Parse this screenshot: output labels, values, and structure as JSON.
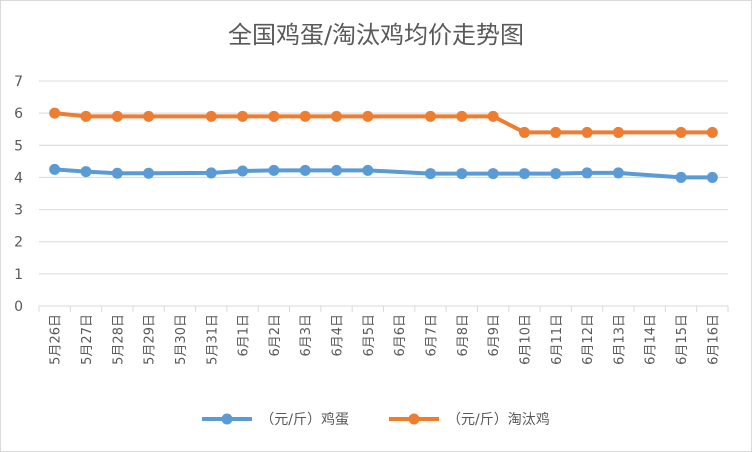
{
  "chart_data": {
    "type": "line",
    "title": "全国鸡蛋/淘汰鸡均价走势图",
    "categories": [
      "5月26日",
      "5月27日",
      "5月28日",
      "5月29日",
      "5月30日",
      "5月31日",
      "6月1日",
      "6月2日",
      "6月3日",
      "6月4日",
      "6月5日",
      "6月6日",
      "6月7日",
      "6月8日",
      "6月9日",
      "6月10日",
      "6月11日",
      "6月12日",
      "6月13日",
      "6月14日",
      "6月15日",
      "6月16日"
    ],
    "series": [
      {
        "name": "（元/斤）鸡蛋",
        "color": "#5b9bd5",
        "values": [
          4.25,
          4.18,
          4.13,
          4.13,
          null,
          4.14,
          4.2,
          4.22,
          4.22,
          4.22,
          4.22,
          null,
          4.12,
          4.12,
          4.12,
          4.12,
          4.12,
          4.14,
          4.14,
          null,
          4.0,
          4.0
        ]
      },
      {
        "name": "（元/斤）淘汰鸡",
        "color": "#ed7d31",
        "values": [
          6.0,
          5.9,
          5.9,
          5.9,
          null,
          5.9,
          5.9,
          5.9,
          5.9,
          5.9,
          5.9,
          null,
          5.9,
          5.9,
          5.9,
          5.4,
          5.4,
          5.4,
          5.4,
          null,
          5.4,
          5.4
        ]
      }
    ],
    "ylim": [
      0,
      7
    ],
    "yticks": [
      0,
      1,
      2,
      3,
      4,
      5,
      6,
      7
    ],
    "grid": true,
    "legend": "bottom"
  }
}
